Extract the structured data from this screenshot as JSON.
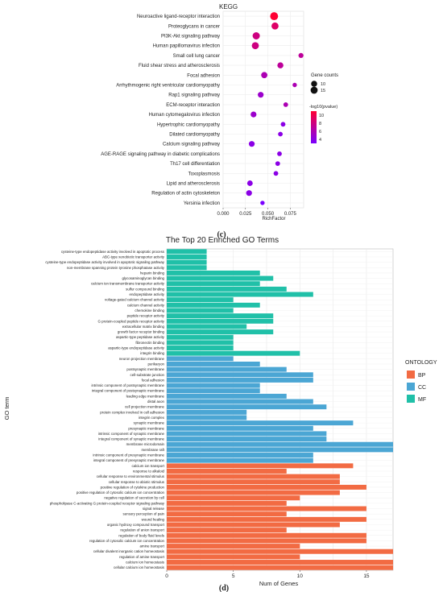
{
  "panel_c_caption": "(c)",
  "panel_d_caption": "(d)",
  "chart_data": [
    {
      "type": "scatter",
      "title": "KEGG",
      "xlabel": "RichFactor",
      "ylabel": "",
      "xlim": [
        0,
        0.09
      ],
      "xticks": [
        "0.000",
        "0.025",
        "0.050",
        "0.075"
      ],
      "xtick_values": [
        0,
        0.025,
        0.05,
        0.075
      ],
      "grid": true,
      "legend_placement": "right",
      "size_legend_title": "Gene counts",
      "size_legend": [
        {
          "label": "10",
          "value": 10
        },
        {
          "label": "15",
          "value": 15
        }
      ],
      "color_legend_title": "-log10(pvalue)",
      "color_ticks": [
        {
          "label": "10",
          "value": 10
        },
        {
          "label": "8",
          "value": 8
        },
        {
          "label": "6",
          "value": 6
        },
        {
          "label": "4",
          "value": 4
        }
      ],
      "color_range": [
        3,
        11
      ],
      "colors": {
        "high": "#ff0033",
        "low": "#7a00ff"
      },
      "categories": [
        "Neuroactive ligand-receptor interaction",
        "Proteoglycans in cancer",
        "PI3K-Akt signaling pathway",
        "Human papillomavirus infection",
        "Small cell lung cancer",
        "Fluid shear stress and atherosclerosis",
        "Focal adhesion",
        "Arrhythmogenic right ventricular cardiomyopathy",
        "Rap1 signaling pathway",
        "ECM-receptor interaction",
        "Human cytomegalovirus infection",
        "Hypertrophic cardiomyopathy",
        "Dilated cardiomyopathy",
        "Calcium signaling pathway",
        "AGE-RAGE signaling pathway in diabetic complications",
        "Th17 cell differentiation",
        "Toxoplasmosis",
        "Lipid and atherosclerosis",
        "Regulation of actin cytoskeleton",
        "Yersinia infection"
      ],
      "points": [
        {
          "x": 0.057,
          "count": 20,
          "logp": 11
        },
        {
          "x": 0.058,
          "count": 15,
          "logp": 9
        },
        {
          "x": 0.037,
          "count": 16,
          "logp": 8
        },
        {
          "x": 0.036,
          "count": 15,
          "logp": 8
        },
        {
          "x": 0.087,
          "count": 6,
          "logp": 7
        },
        {
          "x": 0.064,
          "count": 10,
          "logp": 7
        },
        {
          "x": 0.046,
          "count": 11,
          "logp": 6
        },
        {
          "x": 0.08,
          "count": 4,
          "logp": 6
        },
        {
          "x": 0.042,
          "count": 9,
          "logp": 5
        },
        {
          "x": 0.07,
          "count": 5,
          "logp": 6
        },
        {
          "x": 0.034,
          "count": 9,
          "logp": 5
        },
        {
          "x": 0.067,
          "count": 5,
          "logp": 4
        },
        {
          "x": 0.064,
          "count": 5,
          "logp": 4
        },
        {
          "x": 0.032,
          "count": 9,
          "logp": 4
        },
        {
          "x": 0.063,
          "count": 5,
          "logp": 4
        },
        {
          "x": 0.061,
          "count": 5,
          "logp": 4
        },
        {
          "x": 0.059,
          "count": 5,
          "logp": 4
        },
        {
          "x": 0.03,
          "count": 8,
          "logp": 4
        },
        {
          "x": 0.029,
          "count": 9,
          "logp": 4
        },
        {
          "x": 0.044,
          "count": 4,
          "logp": 3
        }
      ]
    },
    {
      "type": "bar",
      "orientation": "horizontal",
      "title": "The Top 20 Enriched GO Terms",
      "xlabel": "Num of Genes",
      "ylabel": "GO term",
      "xlim": [
        0,
        17
      ],
      "xticks": [
        0,
        5,
        10,
        15
      ],
      "grid": true,
      "legend_title": "ONTOLOGY",
      "legend_placement": "right",
      "series": [
        {
          "name": "BP",
          "color": "#f26b43"
        },
        {
          "name": "CC",
          "color": "#4ba6d4"
        },
        {
          "name": "MF",
          "color": "#20c0a8"
        }
      ],
      "bars": [
        {
          "label": "cysteine-type endopeptidase activity involved in apoptotic process",
          "value": 3,
          "ontology": "MF"
        },
        {
          "label": "ABC-type xenobiotic transporter activity",
          "value": 3,
          "ontology": "MF"
        },
        {
          "label": "cysteine-type endopeptidase activity involved in apoptotic signaling pathway",
          "value": 3,
          "ontology": "MF"
        },
        {
          "label": "non-membrane spanning protein tyrosine phosphatase activity",
          "value": 3,
          "ontology": "MF"
        },
        {
          "label": "heparin binding",
          "value": 7,
          "ontology": "MF"
        },
        {
          "label": "glycosaminoglycan binding",
          "value": 8,
          "ontology": "MF"
        },
        {
          "label": "calcium ion transmembrane transporter activity",
          "value": 7,
          "ontology": "MF"
        },
        {
          "label": "sulfur compound binding",
          "value": 9,
          "ontology": "MF"
        },
        {
          "label": "endopeptidase activity",
          "value": 11,
          "ontology": "MF"
        },
        {
          "label": "voltage-gated calcium channel activity",
          "value": 5,
          "ontology": "MF"
        },
        {
          "label": "calcium channel activity",
          "value": 7,
          "ontology": "MF"
        },
        {
          "label": "chemokine binding",
          "value": 5,
          "ontology": "MF"
        },
        {
          "label": "peptide receptor activity",
          "value": 8,
          "ontology": "MF"
        },
        {
          "label": "G protein-coupled peptide receptor activity",
          "value": 8,
          "ontology": "MF"
        },
        {
          "label": "extracellular matrix binding",
          "value": 6,
          "ontology": "MF"
        },
        {
          "label": "growth factor receptor binding",
          "value": 8,
          "ontology": "MF"
        },
        {
          "label": "aspartic-type peptidase activity",
          "value": 5,
          "ontology": "MF"
        },
        {
          "label": "fibronectin binding",
          "value": 5,
          "ontology": "MF"
        },
        {
          "label": "aspartic-type endopeptidase activity",
          "value": 5,
          "ontology": "MF"
        },
        {
          "label": "integrin binding",
          "value": 10,
          "ontology": "MF"
        },
        {
          "label": "neuron projection membrane",
          "value": 5,
          "ontology": "CC"
        },
        {
          "label": "perikaryon",
          "value": 7,
          "ontology": "CC"
        },
        {
          "label": "postsynaptic membrane",
          "value": 9,
          "ontology": "CC"
        },
        {
          "label": "cell-substrate junction",
          "value": 11,
          "ontology": "CC"
        },
        {
          "label": "focal adhesion",
          "value": 11,
          "ontology": "CC"
        },
        {
          "label": "intrinsic component of postsynaptic membrane",
          "value": 7,
          "ontology": "CC"
        },
        {
          "label": "integral component of postsynaptic membrane",
          "value": 7,
          "ontology": "CC"
        },
        {
          "label": "leading edge membrane",
          "value": 9,
          "ontology": "CC"
        },
        {
          "label": "distal axon",
          "value": 11,
          "ontology": "CC"
        },
        {
          "label": "cell projection membrane",
          "value": 12,
          "ontology": "CC"
        },
        {
          "label": "protein complex involved in cell adhesion",
          "value": 6,
          "ontology": "CC"
        },
        {
          "label": "integrin complex",
          "value": 6,
          "ontology": "CC"
        },
        {
          "label": "synaptic membrane",
          "value": 14,
          "ontology": "CC"
        },
        {
          "label": "presynaptic membrane",
          "value": 11,
          "ontology": "CC"
        },
        {
          "label": "intrinsic component of synaptic membrane",
          "value": 12,
          "ontology": "CC"
        },
        {
          "label": "integral component of synaptic membrane",
          "value": 12,
          "ontology": "CC"
        },
        {
          "label": "membrane microdomain",
          "value": 17,
          "ontology": "CC"
        },
        {
          "label": "membrane raft",
          "value": 17,
          "ontology": "CC"
        },
        {
          "label": "intrinsic component of presynaptic membrane",
          "value": 11,
          "ontology": "CC"
        },
        {
          "label": "integral component of presynaptic membrane",
          "value": 11,
          "ontology": "CC"
        },
        {
          "label": "calcium ion transport",
          "value": 14,
          "ontology": "BP"
        },
        {
          "label": "response to alkaloid",
          "value": 9,
          "ontology": "BP"
        },
        {
          "label": "cellular response to environmental stimulus",
          "value": 13,
          "ontology": "BP"
        },
        {
          "label": "cellular response to abiotic stimulus",
          "value": 13,
          "ontology": "BP"
        },
        {
          "label": "positive regulation of cytokine production",
          "value": 15,
          "ontology": "BP"
        },
        {
          "label": "positive regulation of cytosolic calcium ion concentration",
          "value": 13,
          "ontology": "BP"
        },
        {
          "label": "negative regulation of secretion by cell",
          "value": 10,
          "ontology": "BP"
        },
        {
          "label": "phospholipase C-activating G protein-coupled receptor signaling pathway",
          "value": 9,
          "ontology": "BP"
        },
        {
          "label": "signal release",
          "value": 15,
          "ontology": "BP"
        },
        {
          "label": "sensory perception of pain",
          "value": 9,
          "ontology": "BP"
        },
        {
          "label": "wound healing",
          "value": 15,
          "ontology": "BP"
        },
        {
          "label": "organic hydroxy compound transport",
          "value": 13,
          "ontology": "BP"
        },
        {
          "label": "regulation of anion transport",
          "value": 9,
          "ontology": "BP"
        },
        {
          "label": "regulation of body fluid levels",
          "value": 15,
          "ontology": "BP"
        },
        {
          "label": "regulation of cytosolic calcium ion concentration",
          "value": 15,
          "ontology": "BP"
        },
        {
          "label": "amine transport",
          "value": 10,
          "ontology": "BP"
        },
        {
          "label": "cellular divalent inorganic cation homeostasis",
          "value": 17,
          "ontology": "BP"
        },
        {
          "label": "regulation of amine transport",
          "value": 10,
          "ontology": "BP"
        },
        {
          "label": "calcium ion homeostasis",
          "value": 17,
          "ontology": "BP"
        },
        {
          "label": "cellular calcium ion homeostasis",
          "value": 17,
          "ontology": "BP"
        }
      ]
    }
  ]
}
